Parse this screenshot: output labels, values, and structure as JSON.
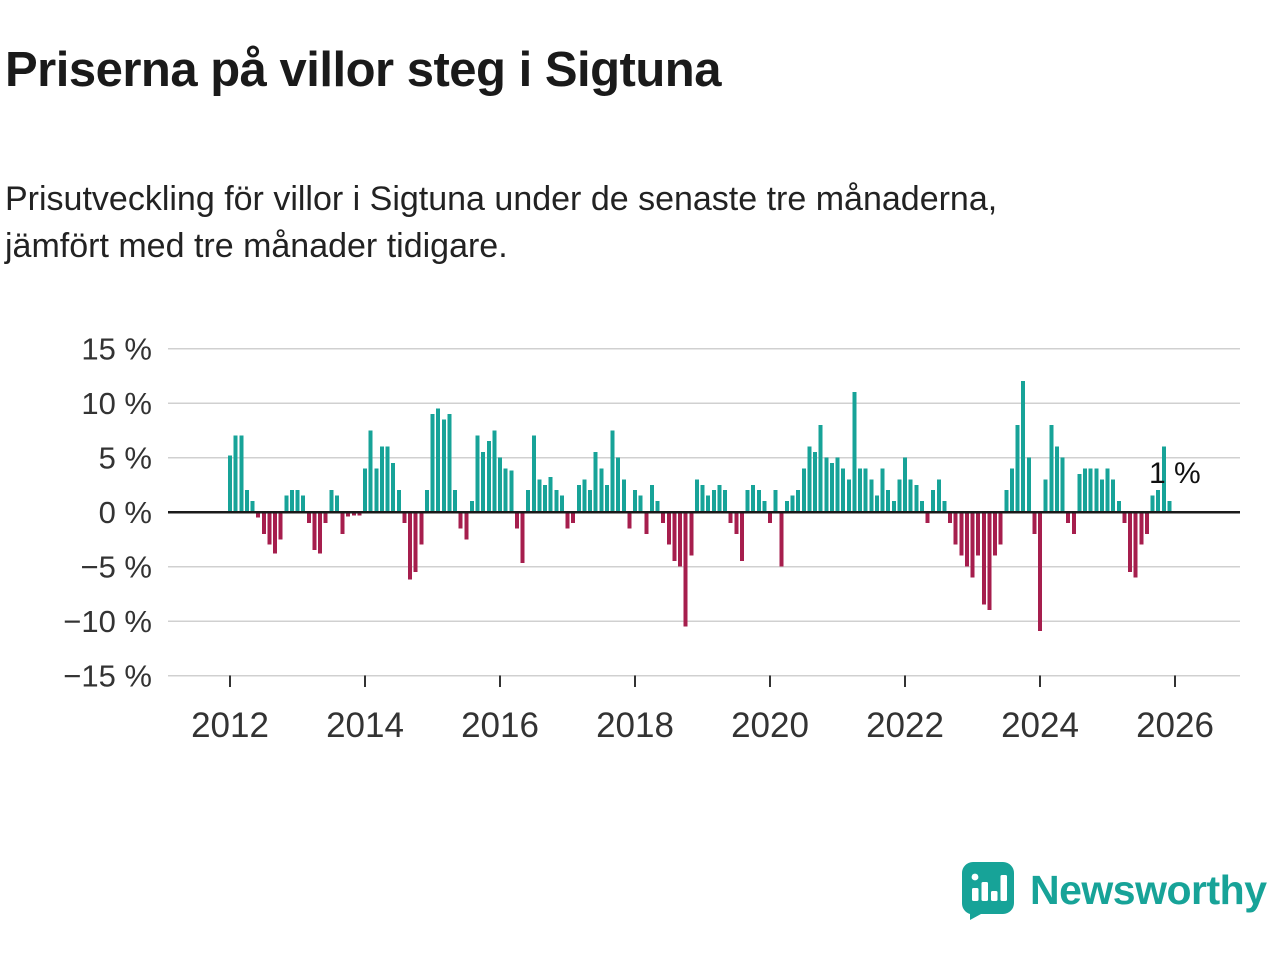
{
  "title": "Priserna på villor steg i Sigtuna",
  "subtitle": "Prisutveckling för villor i Sigtuna under de senaste tre månaderna, jämfört med tre månader tidigare.",
  "branding": {
    "name": "Newsworthy",
    "teal": "#17A398"
  },
  "chart_data": {
    "type": "bar",
    "title": "Priserna på villor steg i Sigtuna",
    "unit": "%",
    "frequency": "monthly",
    "start": "2012-01",
    "end": "2025-12",
    "latest_label": "1 %",
    "latest_value": 1,
    "ylim": [
      -15,
      15
    ],
    "grid": true,
    "colors": {
      "positive": "#17A398",
      "negative": "#A61E4D",
      "zero_line": "#1a1a1a",
      "gridline": "#d0d0d0",
      "axis_text": "#333333"
    },
    "x_tick_years": [
      2012,
      2014,
      2016,
      2018,
      2020,
      2022,
      2024,
      2026
    ],
    "x_tick_labels": [
      "2012",
      "2014",
      "2016",
      "2018",
      "2020",
      "2022",
      "2024",
      "2026"
    ],
    "y_ticks": [
      {
        "value": 15,
        "label": "15 %"
      },
      {
        "value": 10,
        "label": "10 %"
      },
      {
        "value": 5,
        "label": "5 %"
      },
      {
        "value": 0,
        "label": "0 %"
      },
      {
        "value": -5,
        "label": "−5 %"
      },
      {
        "value": -10,
        "label": "−10 %"
      },
      {
        "value": -15,
        "label": "−15 %"
      }
    ],
    "values": [
      5.2,
      7.0,
      7.0,
      2.0,
      1.0,
      -0.5,
      -2.0,
      -3.0,
      -3.8,
      -2.5,
      1.5,
      2.0,
      2.0,
      1.5,
      -1.0,
      -3.5,
      -3.8,
      -1.0,
      2.0,
      1.5,
      -2.0,
      -0.4,
      -0.3,
      -0.3,
      4.0,
      7.5,
      4.0,
      6.0,
      6.0,
      4.5,
      2.0,
      -1.0,
      -6.2,
      -5.5,
      -3.0,
      2.0,
      9.0,
      9.5,
      8.5,
      9.0,
      2.0,
      -1.5,
      -2.5,
      1.0,
      7.0,
      5.5,
      6.5,
      7.5,
      5.0,
      4.0,
      3.8,
      -1.5,
      -4.7,
      2.0,
      7.0,
      3.0,
      2.5,
      3.2,
      2.0,
      1.5,
      -1.5,
      -1.0,
      2.5,
      3.0,
      2.0,
      5.5,
      4.0,
      2.5,
      7.5,
      5.0,
      3.0,
      -1.5,
      2.0,
      1.5,
      -2.0,
      2.5,
      1.0,
      -1.0,
      -3.0,
      -4.5,
      -5.0,
      -10.5,
      -4.0,
      3.0,
      2.5,
      1.5,
      2.0,
      2.5,
      2.0,
      -1.0,
      -2.0,
      -4.5,
      2.0,
      2.5,
      2.0,
      1.0,
      -1.0,
      2.0,
      -5.0,
      1.0,
      1.5,
      2.0,
      4.0,
      6.0,
      5.5,
      8.0,
      5.0,
      4.5,
      5.0,
      4.0,
      3.0,
      11.0,
      4.0,
      4.0,
      3.0,
      1.5,
      4.0,
      2.0,
      1.0,
      3.0,
      5.0,
      3.0,
      2.5,
      1.0,
      -1.0,
      2.0,
      3.0,
      1.0,
      -1.0,
      -3.0,
      -4.0,
      -5.0,
      -6.0,
      -4.0,
      -8.5,
      -9.0,
      -4.0,
      -3.0,
      2.0,
      4.0,
      8.0,
      12.0,
      5.0,
      -2.0,
      -10.9,
      3.0,
      8.0,
      6.0,
      5.0,
      -1.0,
      -2.0,
      3.5,
      4.0,
      4.0,
      4.0,
      3.0,
      4.0,
      3.0,
      1.0,
      -1.0,
      -5.5,
      -6.0,
      -3.0,
      -2.0,
      1.5,
      2.0,
      6.0,
      1.0
    ]
  }
}
